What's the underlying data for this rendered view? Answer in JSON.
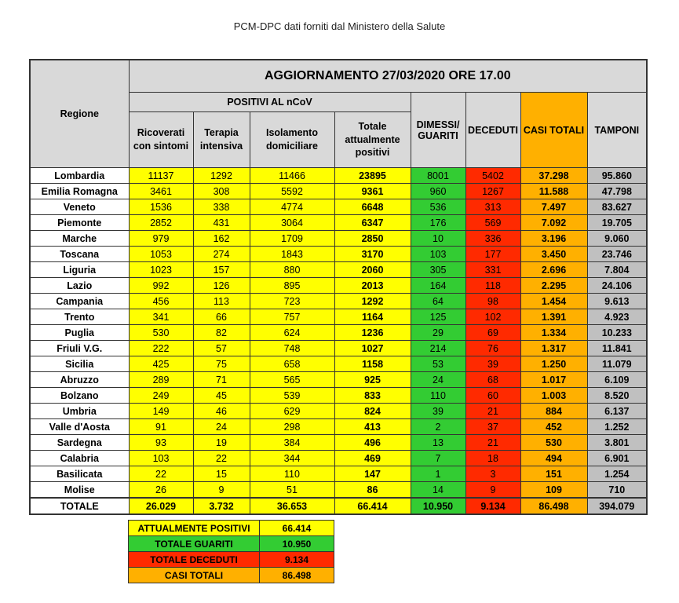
{
  "header": {
    "source": "PCM-DPC dati forniti dal Ministero della Salute"
  },
  "table": {
    "title": "AGGIORNAMENTO 27/03/2020 ORE 17.00",
    "region_header": "Regione",
    "group_header": "POSITIVI AL nCoV",
    "columns": [
      "Ricoverati con sintomi",
      "Terapia intensiva",
      "Isolamento domiciliare",
      "Totale attualmente positivi",
      "DIMESSI/ GUARITI",
      "DECEDUTI",
      "CASI TOTALI",
      "TAMPONI"
    ],
    "rows": [
      [
        "Lombardia",
        "11137",
        "1292",
        "11466",
        "23895",
        "8001",
        "5402",
        "37.298",
        "95.860"
      ],
      [
        "Emilia Romagna",
        "3461",
        "308",
        "5592",
        "9361",
        "960",
        "1267",
        "11.588",
        "47.798"
      ],
      [
        "Veneto",
        "1536",
        "338",
        "4774",
        "6648",
        "536",
        "313",
        "7.497",
        "83.627"
      ],
      [
        "Piemonte",
        "2852",
        "431",
        "3064",
        "6347",
        "176",
        "569",
        "7.092",
        "19.705"
      ],
      [
        "Marche",
        "979",
        "162",
        "1709",
        "2850",
        "10",
        "336",
        "3.196",
        "9.060"
      ],
      [
        "Toscana",
        "1053",
        "274",
        "1843",
        "3170",
        "103",
        "177",
        "3.450",
        "23.746"
      ],
      [
        "Liguria",
        "1023",
        "157",
        "880",
        "2060",
        "305",
        "331",
        "2.696",
        "7.804"
      ],
      [
        "Lazio",
        "992",
        "126",
        "895",
        "2013",
        "164",
        "118",
        "2.295",
        "24.106"
      ],
      [
        "Campania",
        "456",
        "113",
        "723",
        "1292",
        "64",
        "98",
        "1.454",
        "9.613"
      ],
      [
        "Trento",
        "341",
        "66",
        "757",
        "1164",
        "125",
        "102",
        "1.391",
        "4.923"
      ],
      [
        "Puglia",
        "530",
        "82",
        "624",
        "1236",
        "29",
        "69",
        "1.334",
        "10.233"
      ],
      [
        "Friuli V.G.",
        "222",
        "57",
        "748",
        "1027",
        "214",
        "76",
        "1.317",
        "11.841"
      ],
      [
        "Sicilia",
        "425",
        "75",
        "658",
        "1158",
        "53",
        "39",
        "1.250",
        "11.079"
      ],
      [
        "Abruzzo",
        "289",
        "71",
        "565",
        "925",
        "24",
        "68",
        "1.017",
        "6.109"
      ],
      [
        "Bolzano",
        "249",
        "45",
        "539",
        "833",
        "110",
        "60",
        "1.003",
        "8.520"
      ],
      [
        "Umbria",
        "149",
        "46",
        "629",
        "824",
        "39",
        "21",
        "884",
        "6.137"
      ],
      [
        "Valle d'Aosta",
        "91",
        "24",
        "298",
        "413",
        "2",
        "37",
        "452",
        "1.252"
      ],
      [
        "Sardegna",
        "93",
        "19",
        "384",
        "496",
        "13",
        "21",
        "530",
        "3.801"
      ],
      [
        "Calabria",
        "103",
        "22",
        "344",
        "469",
        "7",
        "18",
        "494",
        "6.901"
      ],
      [
        "Basilicata",
        "22",
        "15",
        "110",
        "147",
        "1",
        "3",
        "151",
        "1.254"
      ],
      [
        "Molise",
        "26",
        "9",
        "51",
        "86",
        "14",
        "9",
        "109",
        "710"
      ]
    ],
    "total": [
      "TOTALE",
      "26.029",
      "3.732",
      "36.653",
      "66.414",
      "10.950",
      "9.134",
      "86.498",
      "394.079"
    ]
  },
  "summary": [
    [
      "ATTUALMENTE POSITIVI",
      "66.414"
    ],
    [
      "TOTALE GUARITI",
      "10.950"
    ],
    [
      "TOTALE DECEDUTI",
      "9.134"
    ],
    [
      "CASI TOTALI",
      "86.498"
    ]
  ]
}
